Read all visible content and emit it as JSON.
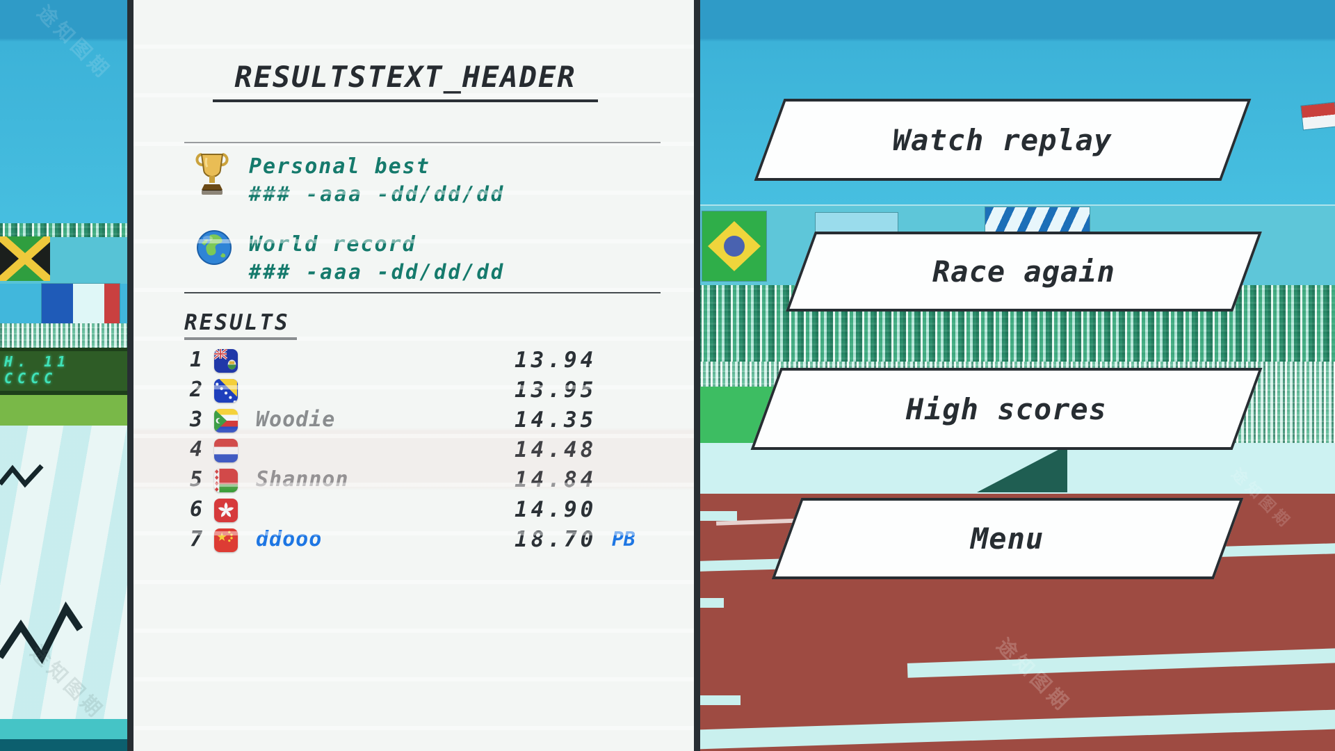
{
  "results_panel": {
    "header": "RESULTSTEXT_HEADER",
    "personal_best": {
      "label": "Personal best",
      "value": "### -aaa -dd/dd/dd",
      "icon": "trophy-icon"
    },
    "world_record": {
      "label": "World record",
      "value": "### -aaa -dd/dd/dd",
      "icon": "globe-icon"
    },
    "results_title": "RESULTS",
    "rows": [
      {
        "rank": "1",
        "flag": "blue-ensign",
        "name": "",
        "time": "13.94",
        "badge": ""
      },
      {
        "rank": "2",
        "flag": "bosnia-herzegovina",
        "name": "",
        "time": "13.95",
        "badge": ""
      },
      {
        "rank": "3",
        "flag": "comoros",
        "name": "Woodie",
        "time": "14.35",
        "badge": ""
      },
      {
        "rank": "4",
        "flag": "netherlands",
        "name": "",
        "time": "14.48",
        "badge": ""
      },
      {
        "rank": "5",
        "flag": "belarus",
        "name": "Shannon",
        "time": "14.84",
        "badge": ""
      },
      {
        "rank": "6",
        "flag": "hong-kong",
        "name": "",
        "time": "14.90",
        "badge": ""
      },
      {
        "rank": "7",
        "flag": "china",
        "name": "ddooo",
        "time": "18.70",
        "badge": "PB",
        "is_player": true
      }
    ]
  },
  "menu_buttons": [
    {
      "id": "watch-replay",
      "label": "Watch replay"
    },
    {
      "id": "race-again",
      "label": "Race again"
    },
    {
      "id": "high-scores",
      "label": "High scores"
    },
    {
      "id": "menu",
      "label": "Menu"
    }
  ],
  "scoreboard": {
    "line1": "H. 11",
    "line2": "CCCC"
  },
  "decor": {
    "watermark_text": "途知图期"
  },
  "colors": {
    "player_blue": "#1d76e3",
    "teal_text": "#157a6c",
    "panel_bg": "#f3f6f4",
    "panel_border": "#272e33",
    "sky": "#41b7dc",
    "track_red": "#9e4b42",
    "button_bg": "#fdfefe",
    "button_border": "#272d32",
    "name_gray": "#8a8d8f",
    "lane_cyan": "#c9f0ee",
    "scoreboard_text": "#3fe3b9"
  }
}
